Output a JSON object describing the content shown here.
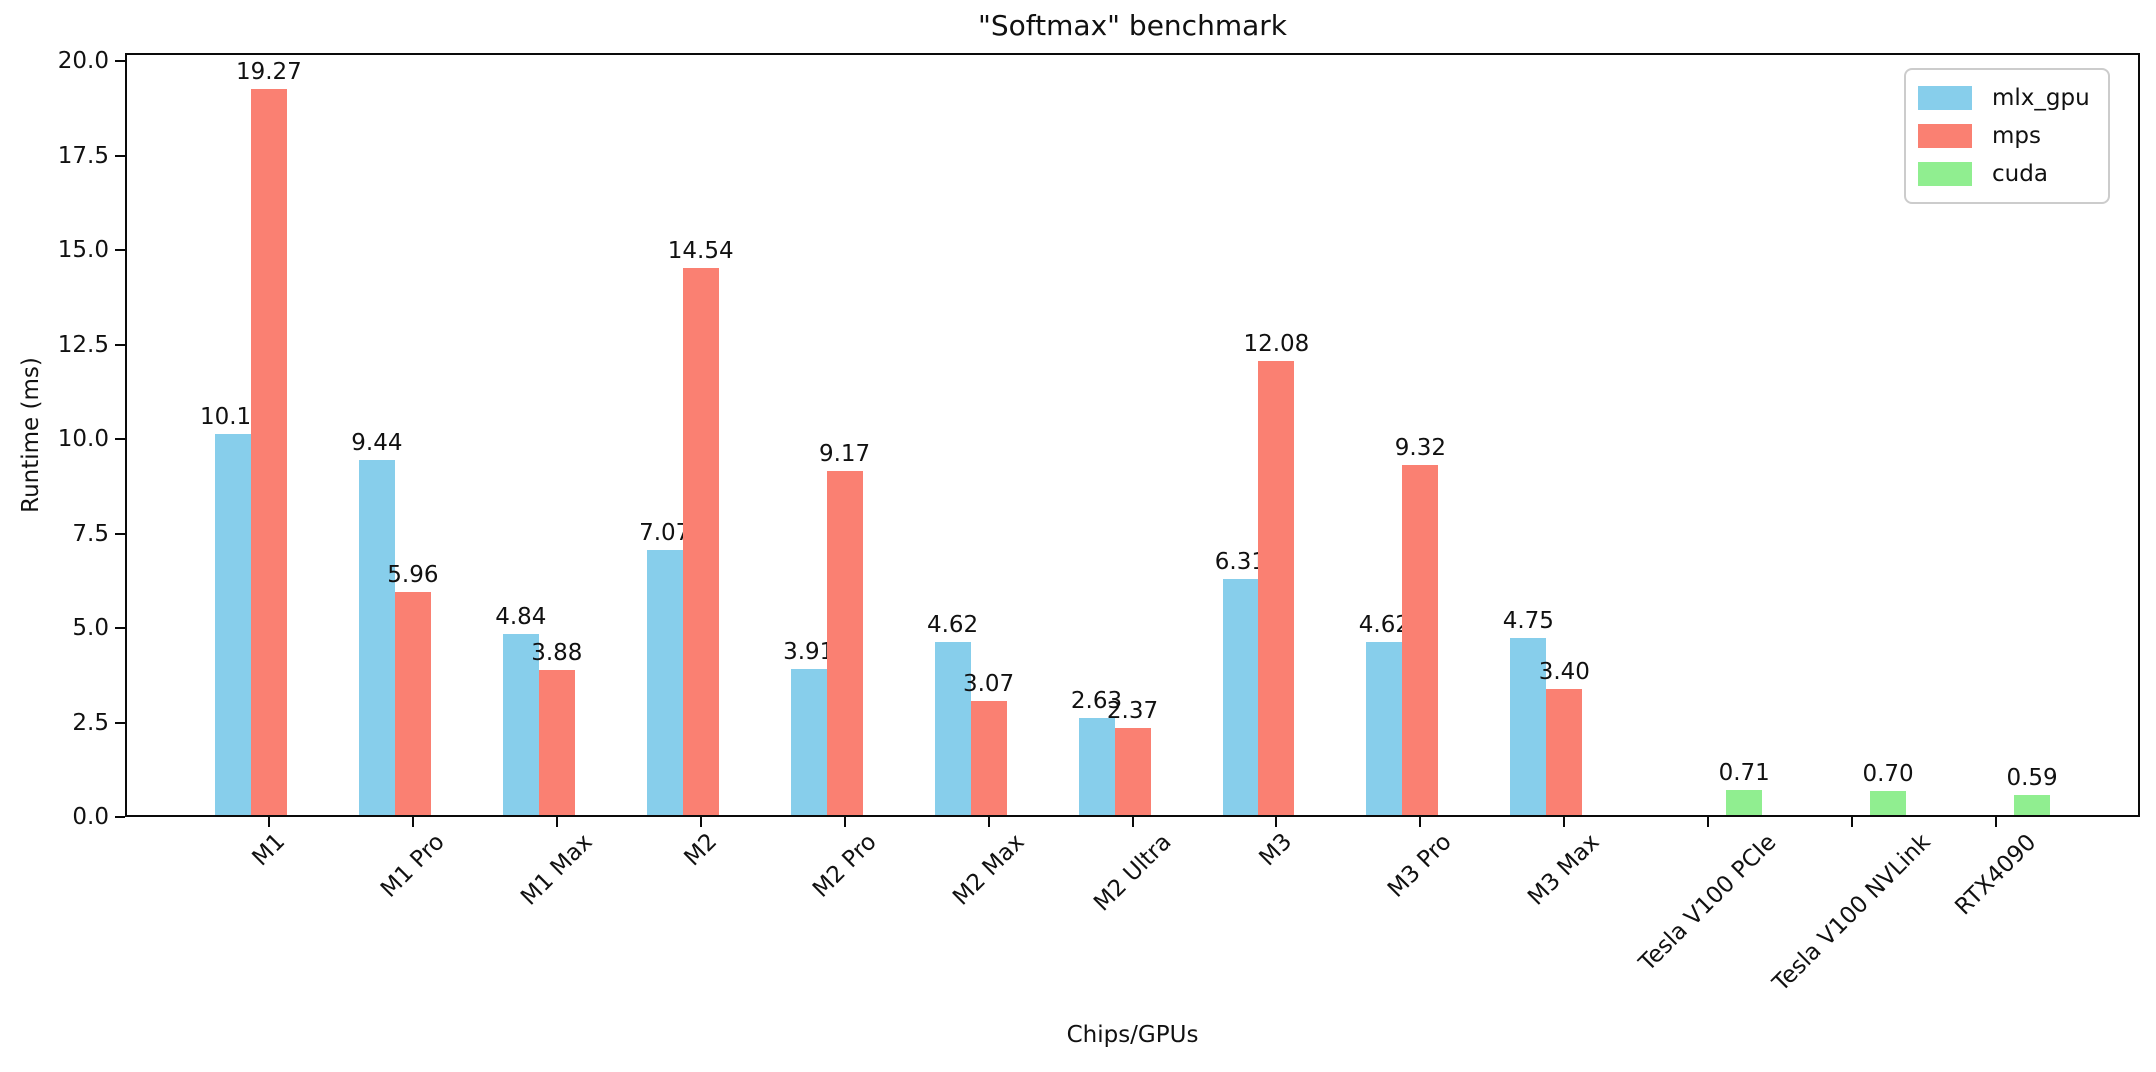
{
  "title": "\"Softmax\" benchmark",
  "chart_data": {
    "type": "bar",
    "title": "\"Softmax\" benchmark",
    "xlabel": "Chips/GPUs",
    "ylabel": "Runtime (ms)",
    "categories": [
      "M1",
      "M1 Pro",
      "M1 Max",
      "M2",
      "M2 Pro",
      "M2 Max",
      "M2 Ultra",
      "M3",
      "M3 Pro",
      "M3 Max",
      "Tesla V100 PCIe",
      "Tesla V100 NVLink",
      "RTX4090"
    ],
    "series": [
      {
        "name": "mlx_gpu",
        "color": "#87CEEB",
        "values": [
          10.15,
          9.44,
          4.84,
          7.07,
          3.91,
          4.62,
          2.63,
          6.31,
          4.62,
          4.75,
          null,
          null,
          null
        ]
      },
      {
        "name": "mps",
        "color": "#FA8072",
        "values": [
          19.27,
          5.96,
          3.88,
          14.54,
          9.17,
          3.07,
          2.37,
          12.08,
          9.32,
          3.4,
          null,
          null,
          null
        ]
      },
      {
        "name": "cuda",
        "color": "#90EE90",
        "values": [
          null,
          null,
          null,
          null,
          null,
          null,
          null,
          null,
          null,
          null,
          0.71,
          0.7,
          0.59
        ]
      }
    ],
    "ylim": [
      0,
      20.22
    ],
    "yticks": [
      0.0,
      2.5,
      5.0,
      7.5,
      10.0,
      12.5,
      15.0,
      17.5,
      20.0
    ],
    "grid": false,
    "legend_position": "upper right",
    "bar_value_labels": true,
    "value_label_decimals": 2,
    "axis_color": "#0a0a0a",
    "text_color": "#111111"
  }
}
